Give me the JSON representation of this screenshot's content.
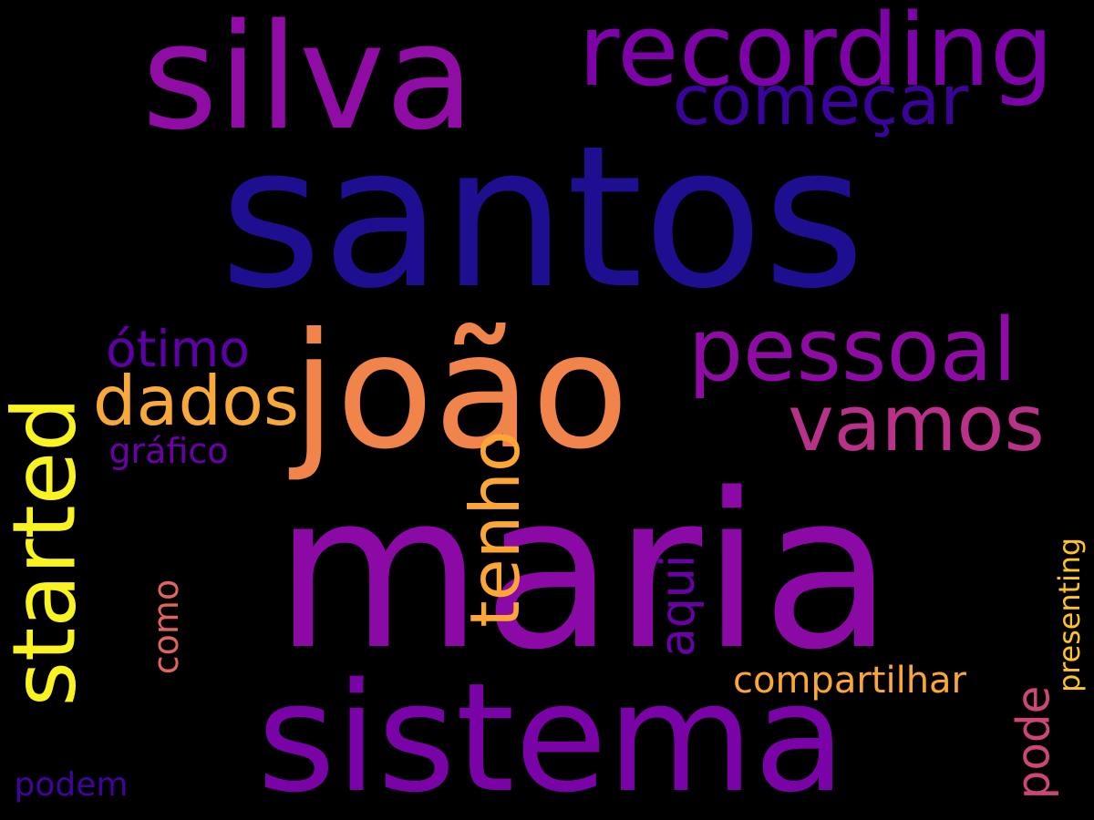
{
  "background": "#000000",
  "words": [
    {
      "text": "santos",
      "color": "#1d0f8f"
    },
    {
      "text": "maria",
      "color": "#8b0aa5"
    },
    {
      "text": "sistema",
      "color": "#7a03a8"
    },
    {
      "text": "silva",
      "color": "#8f0da4"
    },
    {
      "text": "recording",
      "color": "#7d03a8"
    },
    {
      "text": "joão",
      "color": "#f1844b"
    },
    {
      "text": "começar",
      "color": "#3a049a"
    },
    {
      "text": "pessoal",
      "color": "#8e0ca4"
    },
    {
      "text": "vamos",
      "color": "#b83289"
    },
    {
      "text": "started",
      "color": "#f9f421"
    },
    {
      "text": "tenho",
      "color": "#fca636"
    },
    {
      "text": "dados",
      "color": "#f9a83a"
    },
    {
      "text": "ótimo",
      "color": "#5c01a6"
    },
    {
      "text": "gráfico",
      "color": "#6a00a8"
    },
    {
      "text": "aqui",
      "color": "#6a00a8"
    },
    {
      "text": "como",
      "color": "#e16462"
    },
    {
      "text": "compartilhar",
      "color": "#fca636"
    },
    {
      "text": "pode",
      "color": "#cc4778"
    },
    {
      "text": "presenting",
      "color": "#fdc328"
    },
    {
      "text": "podem",
      "color": "#3f049c"
    }
  ]
}
